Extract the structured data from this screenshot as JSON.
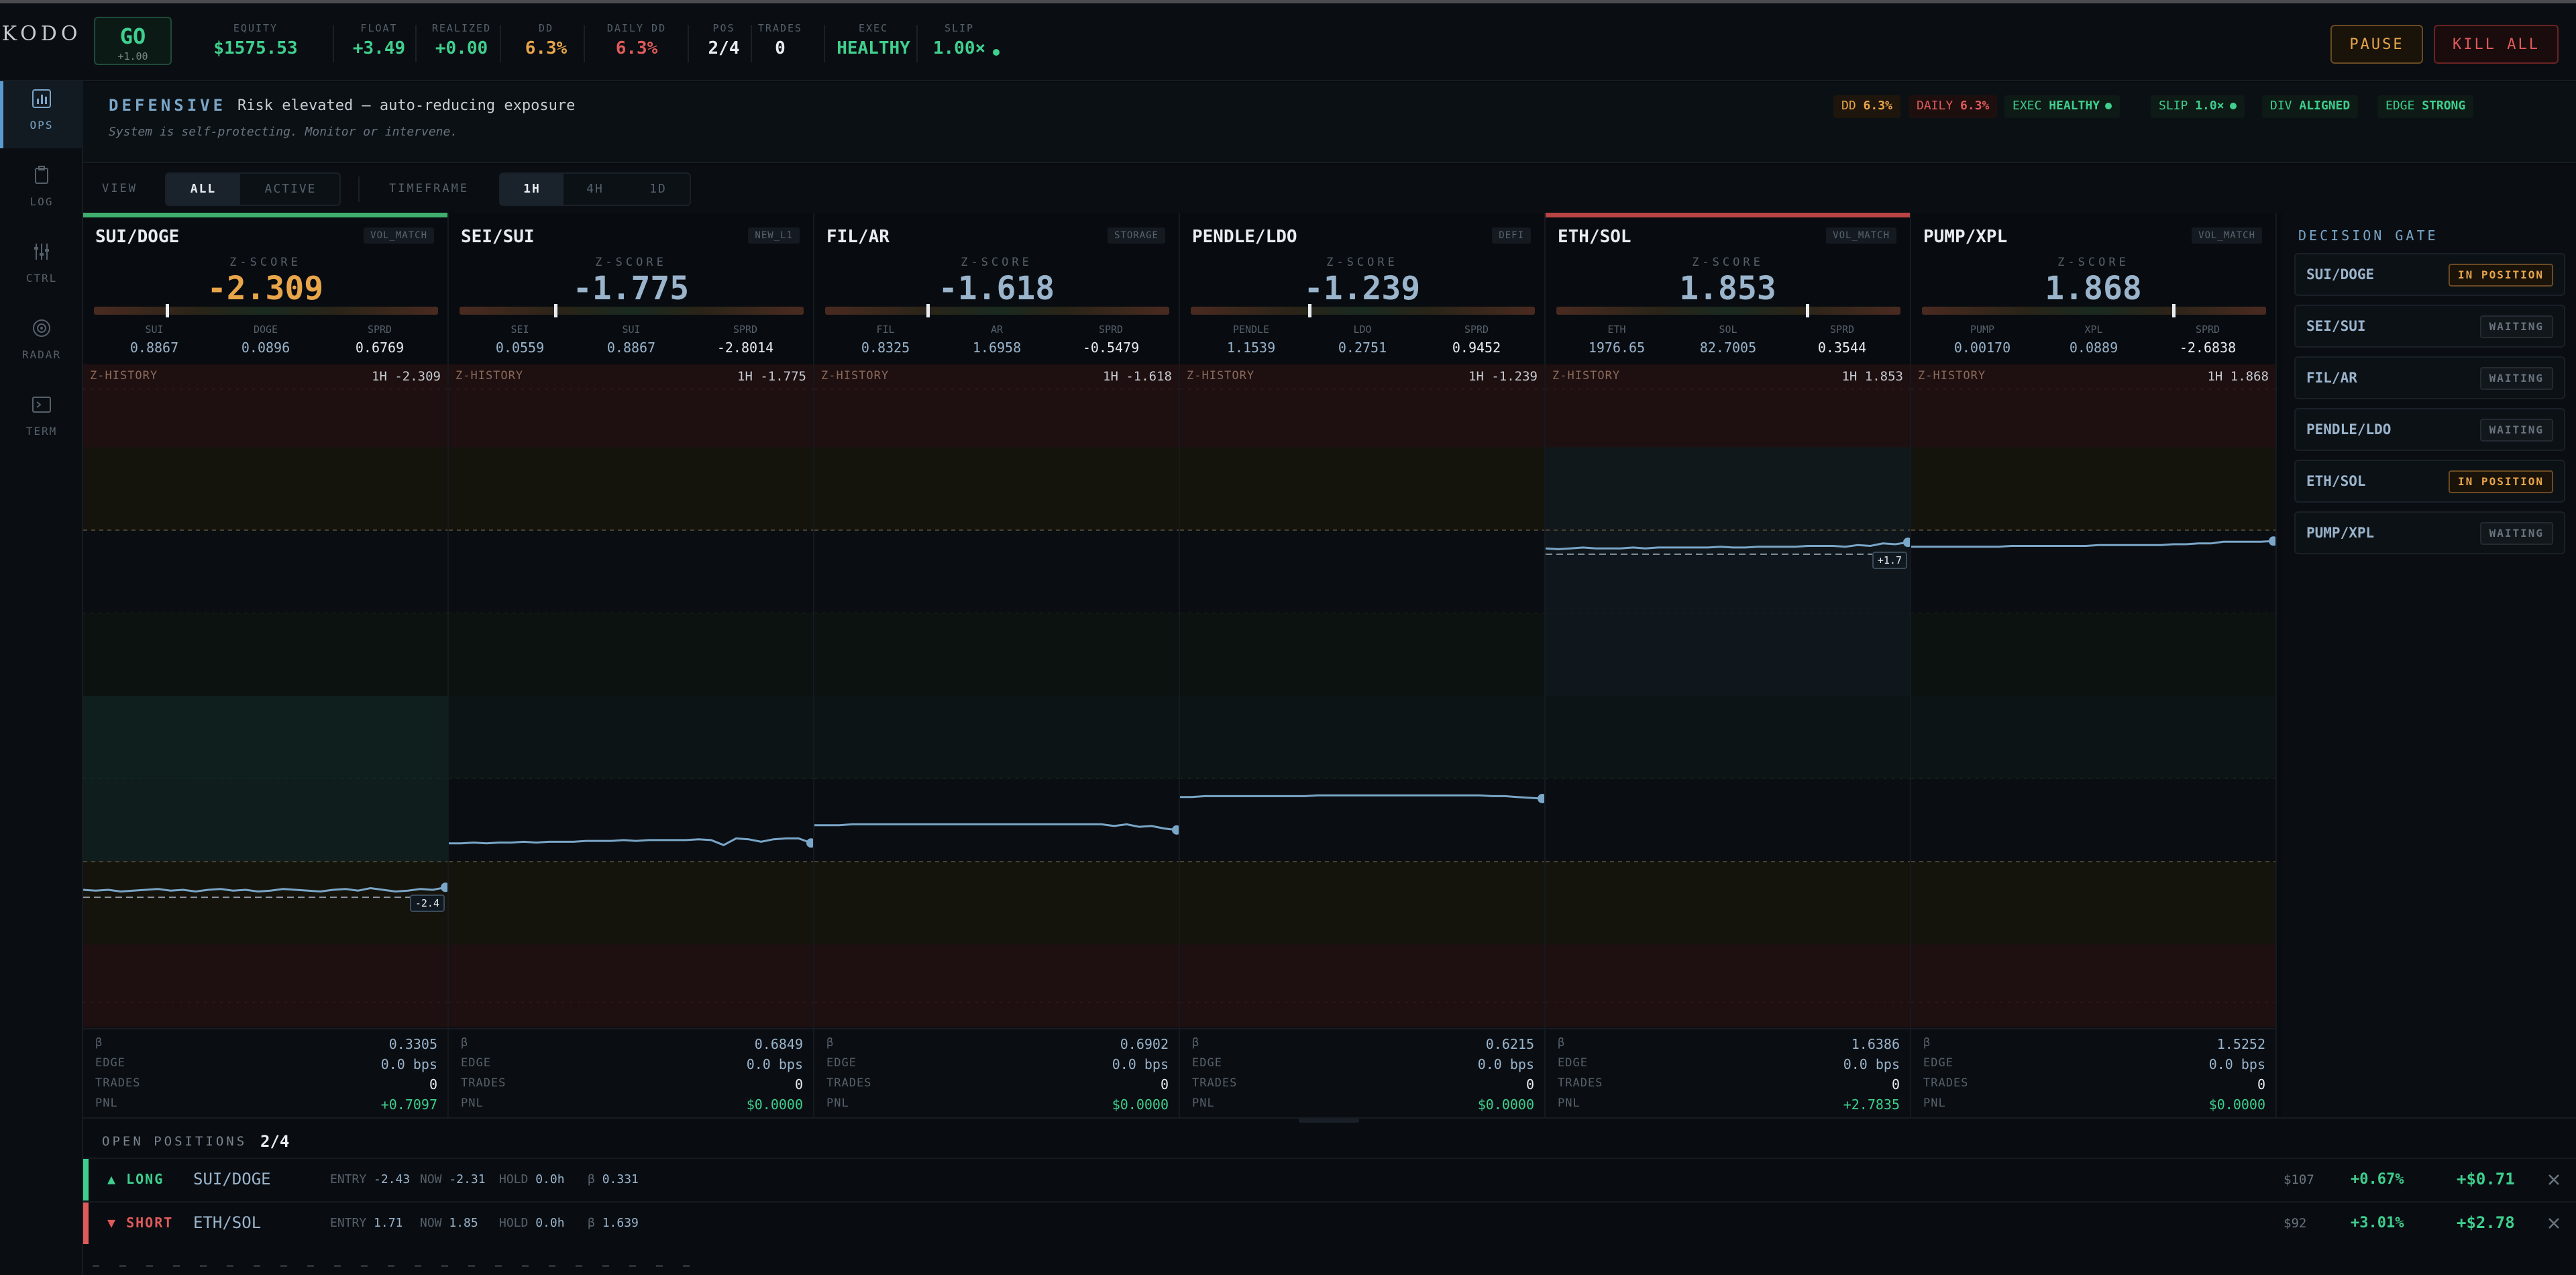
{
  "logo": "KODO",
  "status": {
    "go": "GO",
    "go_sub": "+1.00"
  },
  "metrics": [
    {
      "label": "EQUITY",
      "value": "$1575.53",
      "tone": "green"
    },
    {
      "label": "FLOAT",
      "value": "+3.49",
      "tone": "green"
    },
    {
      "label": "REALIZED",
      "value": "+0.00",
      "tone": "green"
    },
    {
      "label": "DD",
      "value": "6.3%",
      "tone": "amber"
    },
    {
      "label": "DAILY DD",
      "value": "6.3%",
      "tone": "red"
    },
    {
      "label": "POS",
      "value": "2/4",
      "tone": "white"
    },
    {
      "label": "TRADES",
      "value": "0",
      "tone": "white"
    },
    {
      "label": "EXEC",
      "value": "HEALTHY",
      "tone": "green"
    },
    {
      "label": "SLIP",
      "value": "1.00×",
      "tone": "green"
    }
  ],
  "actions": {
    "pause": "PAUSE",
    "kill_all": "KILL ALL"
  },
  "nav": [
    {
      "label": "OPS",
      "icon": "bar-chart-icon",
      "active": true
    },
    {
      "label": "LOG",
      "icon": "clipboard-icon",
      "active": false
    },
    {
      "label": "CTRL",
      "icon": "sliders-icon",
      "active": false
    },
    {
      "label": "RADAR",
      "icon": "radar-icon",
      "active": false
    },
    {
      "label": "TERM",
      "icon": "terminal-icon",
      "active": false
    }
  ],
  "banner": {
    "mode": "DEFENSIVE",
    "desc": "Risk elevated — auto-reducing exposure",
    "sub": "System is self-protecting. Monitor or intervene.",
    "chips": [
      {
        "k": "DD",
        "v": "6.3%",
        "color": "#e8a54a",
        "bg": "#1e160c"
      },
      {
        "k": "DAILY",
        "v": "6.3%",
        "color": "#e05a5a",
        "bg": "#1e0f0f"
      },
      {
        "k": "EXEC",
        "v": "HEALTHY",
        "color": "#3fcf8e",
        "bg": "#0e1a15",
        "dot": true
      },
      {
        "k": "SLIP",
        "v": "1.0×",
        "color": "#3fcf8e",
        "bg": "#0e1a15",
        "dot": true
      },
      {
        "k": "DIV",
        "v": "ALIGNED",
        "color": "#3fcf8e",
        "bg": "#0e1a15"
      },
      {
        "k": "EDGE",
        "v": "STRONG",
        "color": "#3fcf8e",
        "bg": "#0e1a15"
      }
    ]
  },
  "controls": {
    "view_label": "VIEW",
    "view_options": [
      "ALL",
      "ACTIVE"
    ],
    "view_selected": "ALL",
    "timeframe_label": "TIMEFRAME",
    "timeframe_options": [
      "1H",
      "4H",
      "1D"
    ],
    "timeframe_selected": "1H"
  },
  "pairs": [
    {
      "name": "SUI/DOGE",
      "tag": "VOL_MATCH",
      "zlabel": "Z-SCORE",
      "z": "-2.309",
      "zcolor": "#e8a54a",
      "accent": "#3fae6e",
      "legs": [
        {
          "l": "SUI",
          "v": "0.8867"
        },
        {
          "l": "DOGE",
          "v": "0.0896"
        },
        {
          "l": "SPRD",
          "v": "0.6769"
        }
      ],
      "hist_label": "Z-HISTORY",
      "hist_tf": "1H -2.309",
      "series": [
        -2.34,
        -2.35,
        -2.34,
        -2.36,
        -2.35,
        -2.34,
        -2.33,
        -2.35,
        -2.34,
        -2.36,
        -2.34,
        -2.33,
        -2.35,
        -2.34,
        -2.36,
        -2.35,
        -2.33,
        -2.34,
        -2.35,
        -2.36,
        -2.34,
        -2.33,
        -2.35,
        -2.32,
        -2.34,
        -2.36,
        -2.35,
        -2.33,
        -2.34,
        -2.31
      ],
      "entry_line": -2.43,
      "last_label": "-2.4",
      "active": true,
      "stats": {
        "beta": "0.3305",
        "edge": "0.0 bps",
        "trades": "0",
        "pnl": "+0.7097"
      }
    },
    {
      "name": "SEI/SUI",
      "tag": "NEW_L1",
      "zlabel": "Z-SCORE",
      "z": "-1.775",
      "zcolor": "#9ab4cc",
      "accent": "",
      "legs": [
        {
          "l": "SEI",
          "v": "0.0559"
        },
        {
          "l": "SUI",
          "v": "0.8867"
        },
        {
          "l": "SPRD",
          "v": "-2.8014"
        }
      ],
      "hist_label": "Z-HISTORY",
      "hist_tf": "1H -1.775",
      "series": [
        -1.78,
        -1.78,
        -1.77,
        -1.78,
        -1.77,
        -1.77,
        -1.76,
        -1.77,
        -1.76,
        -1.76,
        -1.76,
        -1.75,
        -1.75,
        -1.75,
        -1.74,
        -1.75,
        -1.74,
        -1.74,
        -1.74,
        -1.74,
        -1.73,
        -1.74,
        -1.8,
        -1.72,
        -1.73,
        -1.76,
        -1.73,
        -1.72,
        -1.72,
        -1.775
      ],
      "entry_line": null,
      "last_label": "",
      "active": false,
      "stats": {
        "beta": "0.6849",
        "edge": "0.0 bps",
        "trades": "0",
        "pnl": "$0.0000"
      }
    },
    {
      "name": "FIL/AR",
      "tag": "STORAGE",
      "zlabel": "Z-SCORE",
      "z": "-1.618",
      "zcolor": "#9ab4cc",
      "accent": "",
      "legs": [
        {
          "l": "FIL",
          "v": "0.8325"
        },
        {
          "l": "AR",
          "v": "1.6958"
        },
        {
          "l": "SPRD",
          "v": "-0.5479"
        }
      ],
      "hist_label": "Z-HISTORY",
      "hist_tf": "1H -1.618",
      "series": [
        -1.56,
        -1.56,
        -1.56,
        -1.55,
        -1.55,
        -1.55,
        -1.55,
        -1.55,
        -1.55,
        -1.55,
        -1.55,
        -1.55,
        -1.55,
        -1.55,
        -1.55,
        -1.55,
        -1.55,
        -1.55,
        -1.55,
        -1.55,
        -1.55,
        -1.55,
        -1.55,
        -1.55,
        -1.57,
        -1.55,
        -1.58,
        -1.57,
        -1.6,
        -1.618
      ],
      "entry_line": null,
      "last_label": "",
      "active": false,
      "stats": {
        "beta": "0.6902",
        "edge": "0.0 bps",
        "trades": "0",
        "pnl": "$0.0000"
      }
    },
    {
      "name": "PENDLE/LDO",
      "tag": "DEFI",
      "zlabel": "Z-SCORE",
      "z": "-1.239",
      "zcolor": "#9ab4cc",
      "accent": "",
      "legs": [
        {
          "l": "PENDLE",
          "v": "1.1539"
        },
        {
          "l": "LDO",
          "v": "0.2751"
        },
        {
          "l": "SPRD",
          "v": "0.9452"
        }
      ],
      "hist_label": "Z-HISTORY",
      "hist_tf": "1H -1.239",
      "series": [
        -1.22,
        -1.22,
        -1.21,
        -1.21,
        -1.21,
        -1.21,
        -1.21,
        -1.21,
        -1.21,
        -1.21,
        -1.21,
        -1.2,
        -1.2,
        -1.2,
        -1.2,
        -1.2,
        -1.2,
        -1.2,
        -1.2,
        -1.2,
        -1.2,
        -1.2,
        -1.2,
        -1.2,
        -1.2,
        -1.21,
        -1.21,
        -1.22,
        -1.23,
        -1.239
      ],
      "entry_line": null,
      "last_label": "",
      "active": false,
      "stats": {
        "beta": "0.6215",
        "edge": "0.0 bps",
        "trades": "0",
        "pnl": "$0.0000"
      }
    },
    {
      "name": "ETH/SOL",
      "tag": "VOL_MATCH",
      "zlabel": "Z-SCORE",
      "z": "1.853",
      "zcolor": "#9ab4cc",
      "accent": "#b84444",
      "legs": [
        {
          "l": "ETH",
          "v": "1976.65"
        },
        {
          "l": "SOL",
          "v": "82.7005"
        },
        {
          "l": "SPRD",
          "v": "0.3544"
        }
      ],
      "hist_label": "Z-HISTORY",
      "hist_tf": "1H 1.853",
      "series": [
        1.78,
        1.77,
        1.78,
        1.79,
        1.78,
        1.78,
        1.78,
        1.79,
        1.78,
        1.79,
        1.79,
        1.79,
        1.79,
        1.79,
        1.8,
        1.79,
        1.79,
        1.8,
        1.8,
        1.8,
        1.8,
        1.81,
        1.81,
        1.81,
        1.8,
        1.82,
        1.81,
        1.84,
        1.83,
        1.853
      ],
      "entry_line": 1.71,
      "last_label": "+1.7",
      "active": true,
      "stats": {
        "beta": "1.6386",
        "edge": "0.0 bps",
        "trades": "0",
        "pnl": "+2.7835"
      }
    },
    {
      "name": "PUMP/XPL",
      "tag": "VOL_MATCH",
      "zlabel": "Z-SCORE",
      "z": "1.868",
      "zcolor": "#9ab4cc",
      "accent": "",
      "legs": [
        {
          "l": "PUMP",
          "v": "0.00170"
        },
        {
          "l": "XPL",
          "v": "0.0889"
        },
        {
          "l": "SPRD",
          "v": "-2.6838"
        }
      ],
      "hist_label": "Z-HISTORY",
      "hist_tf": "1H 1.868",
      "series": [
        1.8,
        1.8,
        1.8,
        1.8,
        1.8,
        1.8,
        1.8,
        1.8,
        1.81,
        1.81,
        1.81,
        1.81,
        1.81,
        1.81,
        1.81,
        1.82,
        1.82,
        1.82,
        1.82,
        1.82,
        1.82,
        1.83,
        1.83,
        1.84,
        1.84,
        1.86,
        1.86,
        1.86,
        1.86,
        1.868
      ],
      "entry_line": null,
      "last_label": "",
      "active": false,
      "stats": {
        "beta": "1.5252",
        "edge": "0.0 bps",
        "trades": "0",
        "pnl": "$0.0000"
      }
    }
  ],
  "stat_labels": {
    "beta": "β",
    "edge": "EDGE",
    "trades": "TRADES",
    "pnl": "PNL"
  },
  "gate": {
    "title": "DECISION GATE",
    "items": [
      {
        "pair": "SUI/DOGE",
        "status": "IN POSITION"
      },
      {
        "pair": "SEI/SUI",
        "status": "WAITING"
      },
      {
        "pair": "FIL/AR",
        "status": "WAITING"
      },
      {
        "pair": "PENDLE/LDO",
        "status": "WAITING"
      },
      {
        "pair": "ETH/SOL",
        "status": "IN POSITION"
      },
      {
        "pair": "PUMP/XPL",
        "status": "WAITING"
      }
    ]
  },
  "positions": {
    "title": "OPEN POSITIONS",
    "count": "2/4",
    "rows": [
      {
        "dir": "▲ LONG",
        "color": "#3fcf8e",
        "pair": "SUI/DOGE",
        "entry": "-2.43",
        "now": "-2.31",
        "hold": "0.0h",
        "beta": "0.331",
        "size": "$107",
        "pct": "+0.67%",
        "pnl": "+$0.71"
      },
      {
        "dir": "▼ SHORT",
        "color": "#e05a5a",
        "pair": "ETH/SOL",
        "entry": "1.71",
        "now": "1.85",
        "hold": "0.0h",
        "beta": "1.639",
        "size": "$92",
        "pct": "+3.01%",
        "pnl": "+$2.78"
      }
    ],
    "meta_labels": {
      "entry": "ENTRY",
      "now": "NOW",
      "hold": "HOLD",
      "beta": "β"
    },
    "close_icon": "close-icon"
  },
  "chart_data": {
    "type": "line",
    "title": "Z-HISTORY",
    "x_label": "",
    "y_label": "",
    "ylim": [
      -4,
      4
    ],
    "series": [
      {
        "name": "SUI/DOGE",
        "values": [
          -2.34,
          -2.35,
          -2.34,
          -2.36,
          -2.35,
          -2.34,
          -2.33,
          -2.35,
          -2.34,
          -2.36,
          -2.34,
          -2.33,
          -2.35,
          -2.34,
          -2.36,
          -2.35,
          -2.33,
          -2.34,
          -2.35,
          -2.36,
          -2.34,
          -2.33,
          -2.35,
          -2.32,
          -2.34,
          -2.36,
          -2.35,
          -2.33,
          -2.34,
          -2.31
        ]
      },
      {
        "name": "SEI/SUI",
        "values": [
          -1.78,
          -1.78,
          -1.77,
          -1.78,
          -1.77,
          -1.77,
          -1.76,
          -1.77,
          -1.76,
          -1.76,
          -1.76,
          -1.75,
          -1.75,
          -1.75,
          -1.74,
          -1.75,
          -1.74,
          -1.74,
          -1.74,
          -1.74,
          -1.73,
          -1.74,
          -1.8,
          -1.72,
          -1.73,
          -1.76,
          -1.73,
          -1.72,
          -1.72,
          -1.775
        ]
      },
      {
        "name": "FIL/AR",
        "values": [
          -1.56,
          -1.56,
          -1.56,
          -1.55,
          -1.55,
          -1.55,
          -1.55,
          -1.55,
          -1.55,
          -1.55,
          -1.55,
          -1.55,
          -1.55,
          -1.55,
          -1.55,
          -1.55,
          -1.55,
          -1.55,
          -1.55,
          -1.55,
          -1.55,
          -1.55,
          -1.55,
          -1.55,
          -1.57,
          -1.55,
          -1.58,
          -1.57,
          -1.6,
          -1.618
        ]
      },
      {
        "name": "PENDLE/LDO",
        "values": [
          -1.22,
          -1.22,
          -1.21,
          -1.21,
          -1.21,
          -1.21,
          -1.21,
          -1.21,
          -1.21,
          -1.21,
          -1.21,
          -1.2,
          -1.2,
          -1.2,
          -1.2,
          -1.2,
          -1.2,
          -1.2,
          -1.2,
          -1.2,
          -1.2,
          -1.2,
          -1.2,
          -1.2,
          -1.2,
          -1.21,
          -1.21,
          -1.22,
          -1.23,
          -1.239
        ]
      },
      {
        "name": "ETH/SOL",
        "values": [
          1.78,
          1.77,
          1.78,
          1.79,
          1.78,
          1.78,
          1.78,
          1.79,
          1.78,
          1.79,
          1.79,
          1.79,
          1.79,
          1.79,
          1.8,
          1.79,
          1.79,
          1.8,
          1.8,
          1.8,
          1.8,
          1.81,
          1.81,
          1.81,
          1.8,
          1.82,
          1.81,
          1.84,
          1.83,
          1.853
        ]
      },
      {
        "name": "PUMP/XPL",
        "values": [
          1.8,
          1.8,
          1.8,
          1.8,
          1.8,
          1.8,
          1.8,
          1.8,
          1.81,
          1.81,
          1.81,
          1.81,
          1.81,
          1.81,
          1.81,
          1.82,
          1.82,
          1.82,
          1.82,
          1.82,
          1.82,
          1.83,
          1.83,
          1.84,
          1.84,
          1.86,
          1.86,
          1.86,
          1.86,
          1.868
        ]
      }
    ]
  }
}
